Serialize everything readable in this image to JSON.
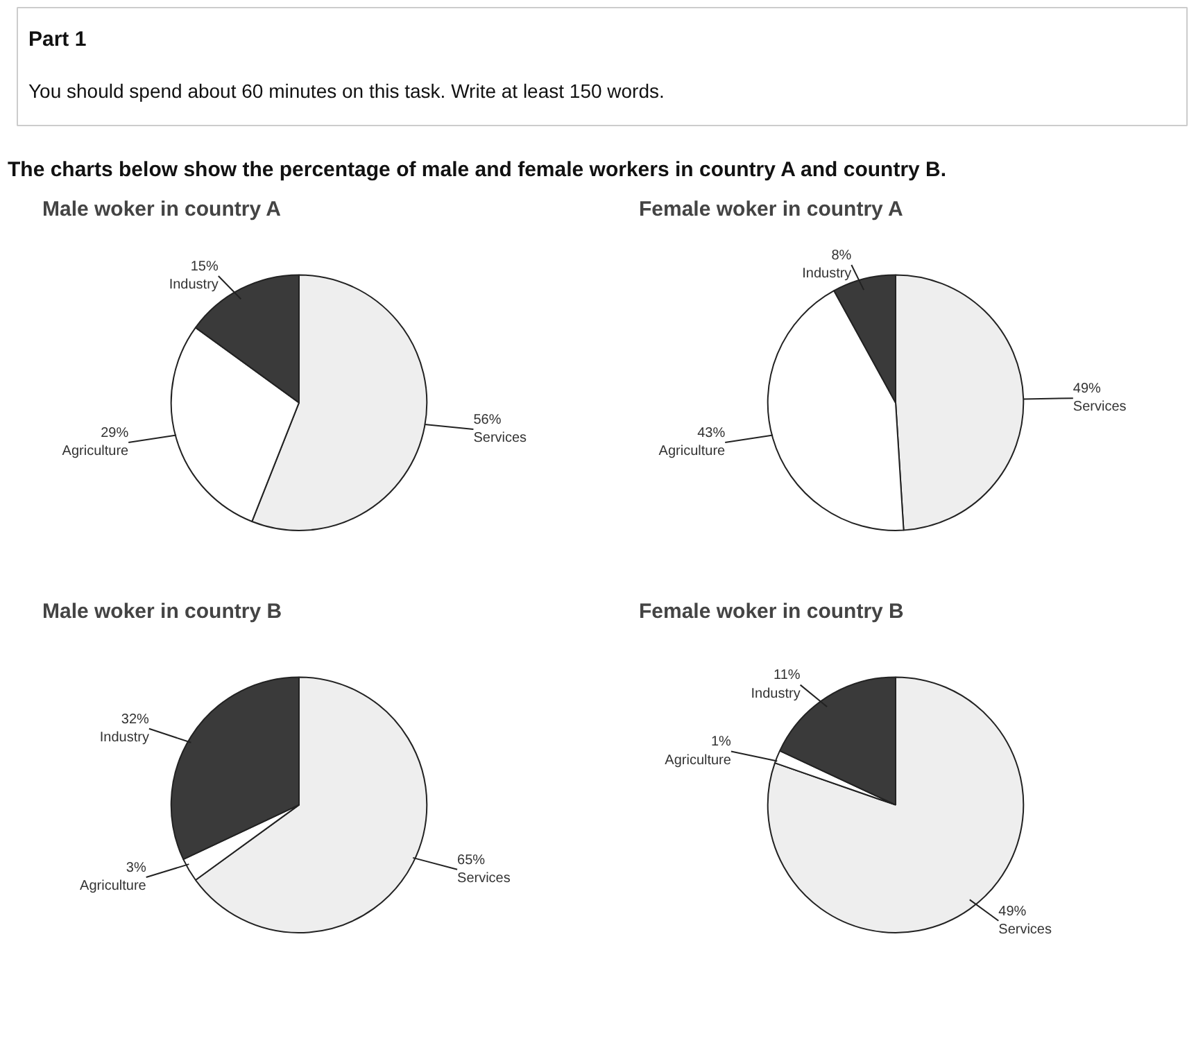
{
  "chart_data": [
    {
      "type": "other",
      "annotations": [
        "Part 1",
        "You should spend about 60 minutes on this task. Write at least 150 words.",
        "The charts below show the percentage of male and female workers in country A and country B."
      ]
    },
    {
      "type": "pie",
      "title": "Male woker in country A",
      "categories": [
        "Services",
        "Agriculture",
        "Industry"
      ],
      "values": [
        56,
        29,
        15
      ],
      "value_labels": [
        "56%",
        "29%",
        "15%"
      ],
      "colors": [
        "#eeeeee",
        "#ffffff",
        "#3a3a3a"
      ]
    },
    {
      "type": "pie",
      "title": "Female woker in country A",
      "categories": [
        "Services",
        "Agriculture",
        "Industry"
      ],
      "values": [
        49,
        43,
        8
      ],
      "value_labels": [
        "49%",
        "43%",
        "8%"
      ],
      "colors": [
        "#eeeeee",
        "#ffffff",
        "#3a3a3a"
      ]
    },
    {
      "type": "pie",
      "title": "Male woker in country B",
      "categories": [
        "Services",
        "Agriculture",
        "Industry"
      ],
      "values": [
        65,
        3,
        32
      ],
      "value_labels": [
        "65%",
        "3%",
        "32%"
      ],
      "colors": [
        "#eeeeee",
        "#ffffff",
        "#3a3a3a"
      ]
    },
    {
      "type": "pie",
      "title": "Female woker in country B",
      "categories": [
        "Services",
        "Agriculture",
        "Industry"
      ],
      "values": [
        49,
        1,
        11
      ],
      "value_labels": [
        "49%",
        "1%",
        "11%"
      ],
      "colors": [
        "#eeeeee",
        "#ffffff",
        "#3a3a3a"
      ]
    }
  ]
}
